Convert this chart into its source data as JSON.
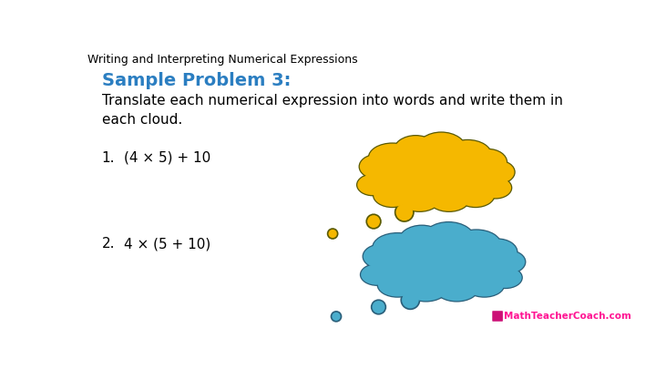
{
  "title": "Writing and Interpreting Numerical Expressions",
  "title_fontsize": 9,
  "title_color": "#000000",
  "sample_problem": "Sample Problem 3:",
  "sample_problem_color": "#2B7EC1",
  "sample_problem_fontsize": 14,
  "instruction": "Translate each numerical expression into words and write them in\neach cloud.",
  "instruction_fontsize": 11,
  "instruction_color": "#000000",
  "problem1_num": "1.",
  "problem1_expr": "(4 × 5) + 10",
  "problem2_num": "2.",
  "problem2_expr": "4 × (5 + 10)",
  "expr_fontsize": 11,
  "expr_color": "#000000",
  "cloud1_color": "#F5B800",
  "cloud1_outline": "#5A5A00",
  "cloud2_color": "#4AADCC",
  "cloud2_outline": "#2A5F7A",
  "watermark": "MathTeacherCoach.com",
  "watermark_color": "#FF1493",
  "watermark_box_color": "#CC1177",
  "bg_color": "#FFFFFF"
}
